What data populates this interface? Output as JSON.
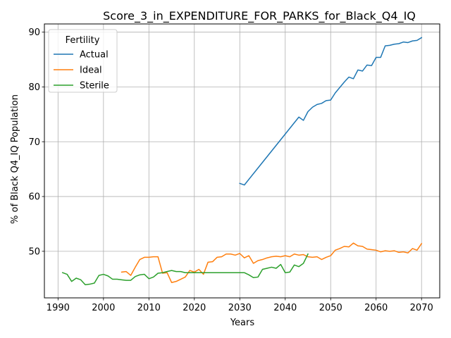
{
  "chart_data": {
    "type": "line",
    "title": "Score_3_in_EXPENDITURE_FOR_PARKS_for_Black_Q4_IQ",
    "xlabel": "Years",
    "ylabel": "% of Black Q4_IQ Population",
    "xlim": [
      1987,
      2074
    ],
    "ylim": [
      41.5,
      91.5
    ],
    "xticks": [
      1990,
      2000,
      2010,
      2020,
      2030,
      2040,
      2050,
      2060,
      2070
    ],
    "yticks": [
      50,
      60,
      70,
      80,
      90
    ],
    "grid": true,
    "legend": {
      "title": "Fertility",
      "placement": "top-left"
    },
    "series": [
      {
        "name": "Actual",
        "color": "#1f77b4",
        "x": [
          2030,
          2031,
          2043,
          2044,
          2045,
          2046,
          2047,
          2048,
          2049,
          2050,
          2051,
          2052,
          2053,
          2054,
          2055,
          2056,
          2057,
          2058,
          2059,
          2060,
          2061,
          2062,
          2063,
          2064,
          2065,
          2066,
          2067,
          2068,
          2069,
          2070
        ],
        "y": [
          62.4,
          62.1,
          74.5,
          73.9,
          75.5,
          76.3,
          76.8,
          77.0,
          77.5,
          77.6,
          78.9,
          79.9,
          80.9,
          81.8,
          81.5,
          83.1,
          82.9,
          84.0,
          83.9,
          85.4,
          85.4,
          87.5,
          87.6,
          87.8,
          87.9,
          88.2,
          88.1,
          88.4,
          88.5,
          89.0
        ]
      },
      {
        "name": "Ideal",
        "color": "#ff7f0e",
        "x": [
          2004,
          2005,
          2006,
          2007,
          2008,
          2009,
          2010,
          2011,
          2012,
          2013,
          2014,
          2015,
          2016,
          2017,
          2018,
          2019,
          2020,
          2021,
          2022,
          2023,
          2024,
          2025,
          2026,
          2027,
          2028,
          2029,
          2030,
          2031,
          2032,
          2033,
          2034,
          2035,
          2036,
          2037,
          2038,
          2039,
          2040,
          2041,
          2042,
          2043,
          2044,
          2045,
          2046,
          2047,
          2048,
          2049,
          2050,
          2051,
          2052,
          2053,
          2054,
          2055,
          2056,
          2057,
          2058,
          2059,
          2060,
          2061,
          2062,
          2063,
          2064,
          2065,
          2066,
          2067,
          2068,
          2069,
          2070
        ],
        "y": [
          46.2,
          46.3,
          45.6,
          47.1,
          48.5,
          48.9,
          48.9,
          49.0,
          49.0,
          46.0,
          46.1,
          44.3,
          44.5,
          44.9,
          45.3,
          46.5,
          46.2,
          46.7,
          45.8,
          48.0,
          48.1,
          48.9,
          49.0,
          49.5,
          49.5,
          49.3,
          49.6,
          48.8,
          49.2,
          47.8,
          48.3,
          48.5,
          48.8,
          49.0,
          49.1,
          49.0,
          49.2,
          49.0,
          49.5,
          49.3,
          49.4,
          49.0,
          48.9,
          49.0,
          48.5,
          48.9,
          49.2,
          50.2,
          50.5,
          50.9,
          50.8,
          51.5,
          51.0,
          50.9,
          50.4,
          50.3,
          50.2,
          49.9,
          50.1,
          50.0,
          50.1,
          49.8,
          49.9,
          49.7,
          50.5,
          50.2,
          51.4
        ]
      },
      {
        "name": "Sterile",
        "color": "#2ca02c",
        "x": [
          1991,
          1992,
          1993,
          1994,
          1995,
          1996,
          1997,
          1998,
          1999,
          2000,
          2001,
          2002,
          2003,
          2004,
          2005,
          2006,
          2007,
          2008,
          2009,
          2010,
          2011,
          2012,
          2013,
          2014,
          2015,
          2016,
          2017,
          2018,
          2019,
          2020,
          2021,
          2022,
          2023,
          2024,
          2025,
          2026,
          2027,
          2028,
          2029,
          2030,
          2031,
          2032,
          2033,
          2034,
          2035,
          2036,
          2037,
          2038,
          2039,
          2040,
          2041,
          2042,
          2043,
          2044,
          2045
        ],
        "y": [
          46.1,
          45.8,
          44.5,
          45.1,
          44.8,
          43.9,
          44.0,
          44.2,
          45.6,
          45.8,
          45.5,
          44.9,
          44.9,
          44.8,
          44.7,
          44.7,
          45.4,
          45.7,
          45.8,
          45.0,
          45.3,
          46.0,
          46.1,
          46.3,
          46.5,
          46.3,
          46.3,
          46.1,
          46.1,
          46.1,
          46.1,
          46.1,
          46.1,
          46.1,
          46.1,
          46.1,
          46.1,
          46.1,
          46.1,
          46.1,
          46.1,
          45.7,
          45.2,
          45.3,
          46.7,
          46.9,
          47.1,
          46.9,
          47.6,
          46.1,
          46.2,
          47.5,
          47.2,
          47.8,
          49.5
        ]
      }
    ]
  }
}
